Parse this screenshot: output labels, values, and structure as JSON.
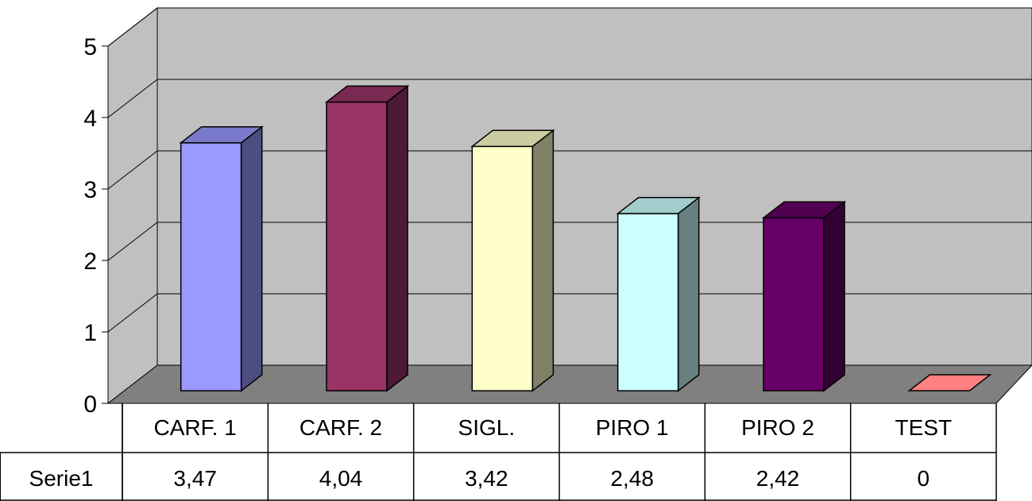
{
  "chart_data": {
    "type": "bar",
    "title": "",
    "xlabel": "",
    "ylabel": "",
    "ylim": [
      0,
      5
    ],
    "yticks": [
      0,
      1,
      2,
      3,
      4,
      5
    ],
    "grid": true,
    "style": "3d",
    "categories": [
      "CARF. 1",
      "CARF. 2",
      "SIGL.",
      "PIRO 1",
      "PIRO 2",
      "TEST"
    ],
    "series": [
      {
        "name": "Serie1",
        "values": [
          3.47,
          4.04,
          3.42,
          2.48,
          2.42,
          0
        ],
        "value_labels": [
          "3,47",
          "4,04",
          "3,42",
          "2,48",
          "2,42",
          "0"
        ]
      }
    ],
    "bar_colors": [
      "#9999ff",
      "#993366",
      "#ffffcc",
      "#ccffff",
      "#660066",
      "#ff8080"
    ],
    "legend": "data table below chart"
  }
}
